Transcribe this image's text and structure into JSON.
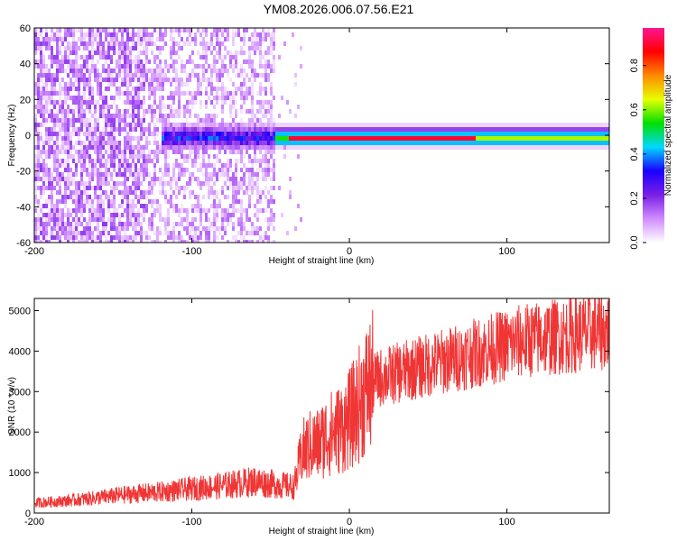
{
  "title": "YM08.2026.006.07.56.E21",
  "colors": {
    "series": "#f03535",
    "frame": "#000000"
  },
  "chart_data": [
    {
      "type": "heatmap",
      "xlabel": "Height of straight line (km)",
      "ylabel": "Frequency (Hz)",
      "xlim": [
        -200,
        165
      ],
      "ylim": [
        -60,
        60
      ],
      "x_ticks": [
        -200,
        -100,
        0,
        100
      ],
      "y_ticks": [
        -60,
        -40,
        -20,
        0,
        20,
        40,
        60
      ],
      "colorbar": {
        "label": "Normalized spectral amplitude",
        "range": [
          0,
          0.97
        ],
        "ticks": [
          0.0,
          0.2,
          0.4,
          0.6,
          0.8
        ],
        "colormap": [
          "#ffffff",
          "#d08cff",
          "#7a1fe6",
          "#1a00ff",
          "#00d8ff",
          "#00e000",
          "#e6ff00",
          "#ff8a00",
          "#ff0000",
          "#ff1493"
        ]
      },
      "regions": [
        {
          "x_range": [
            -200,
            -48
          ],
          "content": "broadband noise, amplitude 0.0-0.2"
        },
        {
          "x_range": [
            -120,
            -48
          ],
          "frequency": 0,
          "content": "narrowband signal, amplitude 0.2-0.4"
        },
        {
          "x_range": [
            -45,
            165
          ],
          "frequency": 0,
          "content": "narrowband carrier, peak amplitude ~0.9"
        }
      ]
    },
    {
      "type": "line",
      "xlabel": "Height of straight line (km)",
      "ylabel": "SNR (10 * v/v)",
      "xlim": [
        -200,
        165
      ],
      "ylim": [
        0,
        5300
      ],
      "x_ticks": [
        -200,
        -100,
        0,
        100
      ],
      "y_ticks": [
        0,
        1000,
        2000,
        3000,
        4000,
        5000
      ],
      "series": [
        {
          "x": [
            -200,
            -180,
            -160,
            -140,
            -120,
            -100,
            -80,
            -60,
            -45,
            -35,
            -30,
            -25,
            -20,
            -15,
            -10,
            -5,
            0,
            5,
            10,
            15,
            20,
            30,
            40,
            50,
            60,
            70,
            80,
            90,
            100,
            110,
            120,
            130,
            140,
            150,
            165
          ],
          "values": [
            250,
            300,
            380,
            460,
            520,
            600,
            680,
            780,
            700,
            650,
            1500,
            1650,
            1700,
            1900,
            2000,
            2100,
            2300,
            2600,
            3000,
            3250,
            3350,
            3450,
            3550,
            3650,
            3750,
            3850,
            3950,
            4050,
            4150,
            4250,
            4300,
            4350,
            4400,
            4450,
            4500
          ]
        }
      ]
    }
  ]
}
